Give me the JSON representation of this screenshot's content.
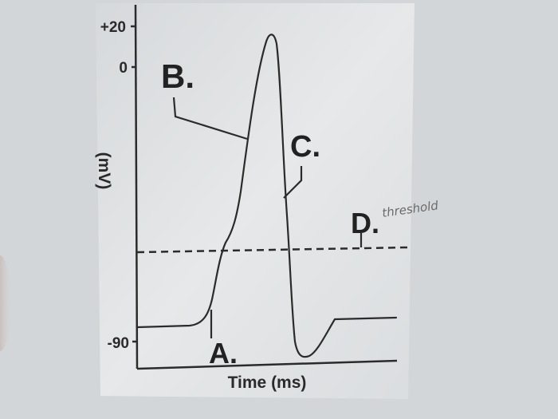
{
  "figure": {
    "y_axis": {
      "label": "(mV)",
      "ticks": [
        "+20",
        "0",
        "-90"
      ]
    },
    "x_axis": {
      "label": "Time (ms)"
    },
    "annotations": {
      "a": "A.",
      "b": "B.",
      "c": "C.",
      "d": "D."
    },
    "handwritten_note": "threshold"
  },
  "colors": {
    "ink": "#2b2b2b",
    "paper": "#e4e7e8",
    "background": "#c9cdd0"
  }
}
